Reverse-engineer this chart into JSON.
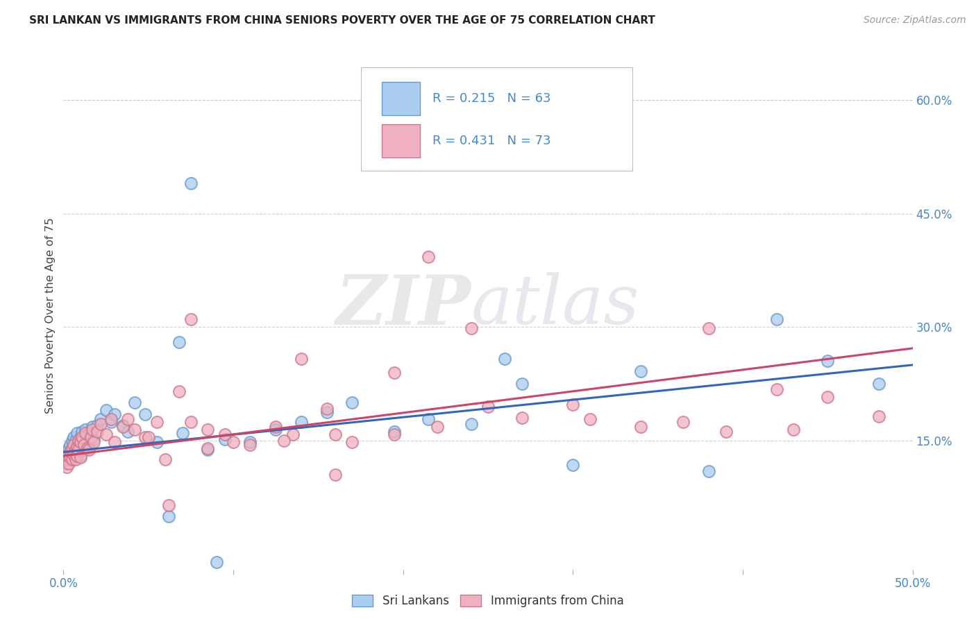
{
  "title": "SRI LANKAN VS IMMIGRANTS FROM CHINA SENIORS POVERTY OVER THE AGE OF 75 CORRELATION CHART",
  "source": "Source: ZipAtlas.com",
  "ylabel": "Seniors Poverty Over the Age of 75",
  "xlim": [
    0.0,
    0.5
  ],
  "ylim": [
    -0.02,
    0.65
  ],
  "xticks": [
    0.0,
    0.1,
    0.2,
    0.3,
    0.4,
    0.5
  ],
  "xtick_labels": [
    "0.0%",
    "",
    "",
    "",
    "",
    "50.0%"
  ],
  "ytick_labels_right": [
    "15.0%",
    "30.0%",
    "45.0%",
    "60.0%"
  ],
  "yticks_right": [
    0.15,
    0.3,
    0.45,
    0.6
  ],
  "grid_color": "#cccccc",
  "background_color": "#ffffff",
  "sri_lanka_color": "#aaccee",
  "sri_lanka_edge": "#6699cc",
  "china_color": "#f0b0c0",
  "china_edge": "#cc7788",
  "trend_sl_color": "#3366bb",
  "trend_ch_color": "#cc4466",
  "sri_lanka_R": 0.215,
  "sri_lanka_N": 63,
  "china_R": 0.431,
  "china_N": 73,
  "legend_label_1": "Sri Lankans",
  "legend_label_2": "Immigrants from China",
  "watermark_zip": "ZIP",
  "watermark_atlas": "atlas",
  "sri_lanka_x": [
    0.001,
    0.002,
    0.002,
    0.003,
    0.003,
    0.003,
    0.004,
    0.004,
    0.005,
    0.005,
    0.005,
    0.006,
    0.006,
    0.007,
    0.007,
    0.007,
    0.008,
    0.008,
    0.009,
    0.009,
    0.01,
    0.01,
    0.011,
    0.012,
    0.013,
    0.014,
    0.015,
    0.016,
    0.017,
    0.018,
    0.02,
    0.022,
    0.025,
    0.028,
    0.03,
    0.035,
    0.038,
    0.042,
    0.048,
    0.055,
    0.062,
    0.068,
    0.075,
    0.085,
    0.095,
    0.11,
    0.125,
    0.14,
    0.155,
    0.17,
    0.195,
    0.215,
    0.24,
    0.27,
    0.3,
    0.34,
    0.38,
    0.42,
    0.45,
    0.48,
    0.26,
    0.07,
    0.09
  ],
  "sri_lanka_y": [
    0.125,
    0.13,
    0.135,
    0.14,
    0.13,
    0.125,
    0.145,
    0.135,
    0.15,
    0.14,
    0.128,
    0.155,
    0.135,
    0.145,
    0.13,
    0.15,
    0.16,
    0.14,
    0.148,
    0.135,
    0.155,
    0.13,
    0.162,
    0.15,
    0.165,
    0.158,
    0.145,
    0.16,
    0.168,
    0.152,
    0.17,
    0.178,
    0.19,
    0.175,
    0.185,
    0.17,
    0.162,
    0.2,
    0.185,
    0.148,
    0.05,
    0.28,
    0.49,
    0.138,
    0.152,
    0.148,
    0.165,
    0.175,
    0.188,
    0.2,
    0.162,
    0.178,
    0.172,
    0.225,
    0.118,
    0.242,
    0.11,
    0.31,
    0.255,
    0.225,
    0.258,
    0.16,
    -0.01
  ],
  "china_x": [
    0.001,
    0.002,
    0.002,
    0.003,
    0.003,
    0.004,
    0.004,
    0.005,
    0.005,
    0.006,
    0.006,
    0.007,
    0.007,
    0.008,
    0.008,
    0.009,
    0.009,
    0.01,
    0.01,
    0.011,
    0.012,
    0.013,
    0.014,
    0.015,
    0.016,
    0.017,
    0.018,
    0.02,
    0.022,
    0.025,
    0.028,
    0.03,
    0.035,
    0.038,
    0.042,
    0.048,
    0.055,
    0.062,
    0.068,
    0.075,
    0.085,
    0.095,
    0.11,
    0.125,
    0.14,
    0.155,
    0.17,
    0.195,
    0.215,
    0.24,
    0.27,
    0.3,
    0.34,
    0.38,
    0.42,
    0.45,
    0.48,
    0.195,
    0.05,
    0.135,
    0.16,
    0.25,
    0.31,
    0.365,
    0.43,
    0.39,
    0.1,
    0.075,
    0.16,
    0.22,
    0.13,
    0.085,
    0.06
  ],
  "china_y": [
    0.12,
    0.115,
    0.13,
    0.125,
    0.12,
    0.135,
    0.128,
    0.14,
    0.125,
    0.145,
    0.132,
    0.138,
    0.125,
    0.142,
    0.13,
    0.15,
    0.138,
    0.148,
    0.128,
    0.155,
    0.145,
    0.16,
    0.14,
    0.138,
    0.155,
    0.165,
    0.148,
    0.162,
    0.172,
    0.158,
    0.178,
    0.148,
    0.168,
    0.178,
    0.165,
    0.155,
    0.175,
    0.065,
    0.215,
    0.31,
    0.165,
    0.158,
    0.145,
    0.168,
    0.258,
    0.192,
    0.148,
    0.158,
    0.393,
    0.298,
    0.18,
    0.198,
    0.168,
    0.298,
    0.218,
    0.208,
    0.182,
    0.24,
    0.155,
    0.158,
    0.105,
    0.195,
    0.178,
    0.175,
    0.165,
    0.162,
    0.148,
    0.175,
    0.158,
    0.168,
    0.15,
    0.14,
    0.125
  ]
}
